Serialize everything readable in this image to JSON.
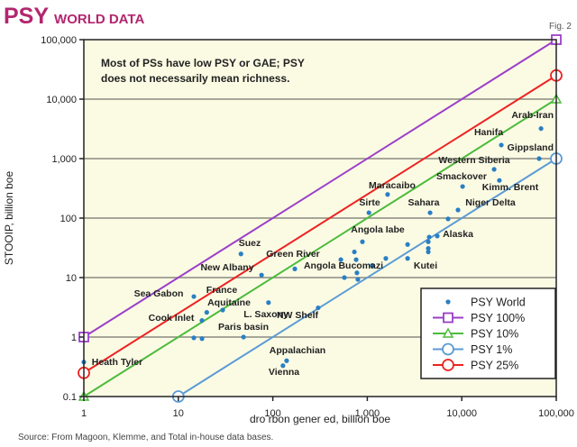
{
  "header": {
    "title_main": "PSY",
    "title_sub": "WORLD DATA",
    "figure_label": "Fig. 2"
  },
  "source": "Source: From Magoon, Klemme, and Total in-house data bases.",
  "chart_data": {
    "type": "scatter",
    "title": "",
    "annotation_box": [
      "Most of PSs have low PSY or GAE; PSY",
      "does not necessarily mean richness."
    ],
    "xlabel": "dro rbon gener ed, billion boe",
    "ylabel": "STOOIP, billion boe",
    "xscale": "log",
    "yscale": "log",
    "xlim": [
      1,
      100000
    ],
    "ylim": [
      0.1,
      100000
    ],
    "xticks": [
      1,
      10,
      100,
      1000,
      10000,
      100000
    ],
    "xtick_labels": [
      "1",
      "10",
      "100",
      "1,000",
      "10,000",
      "100,000"
    ],
    "yticks": [
      0.1,
      1,
      10,
      100,
      1000,
      10000,
      100000
    ],
    "ytick_labels": [
      "0.1",
      "1",
      "10",
      "100",
      "1,000",
      "10,000",
      "100,000"
    ],
    "grid": "horizontal",
    "legend_position": "bottom-right",
    "background_color": "#fbfbe4",
    "series": [
      {
        "name": "PSY World",
        "kind": "points",
        "color": "#2a7fc4",
        "points": [
          [
            69000,
            3200
          ],
          [
            26200,
            1690
          ],
          [
            65900,
            1000
          ],
          [
            22000,
            660
          ],
          [
            25000,
            430
          ],
          [
            10200,
            340
          ],
          [
            1640,
            250
          ],
          [
            1040,
            123
          ],
          [
            4620,
            123
          ],
          [
            9120,
            137
          ],
          [
            7160,
            97
          ],
          [
            888,
            40
          ],
          [
            5500,
            50
          ],
          [
            4520,
            48
          ],
          [
            4420,
            40
          ],
          [
            4420,
            31
          ],
          [
            4420,
            27
          ],
          [
            2670,
            36
          ],
          [
            2670,
            21
          ],
          [
            1570,
            21
          ],
          [
            1130,
            16
          ],
          [
            730,
            27
          ],
          [
            762,
            20
          ],
          [
            525,
            20
          ],
          [
            572,
            10
          ],
          [
            777,
            12
          ],
          [
            795,
            9.3
          ],
          [
            171,
            14
          ],
          [
            76,
            11
          ],
          [
            46,
            25
          ],
          [
            14.6,
            4.8
          ],
          [
            20,
            2.6
          ],
          [
            29.5,
            2.85
          ],
          [
            17.8,
            1.9
          ],
          [
            14.6,
            0.97
          ],
          [
            17.8,
            0.94
          ],
          [
            49,
            1.0
          ],
          [
            90,
            3.8
          ],
          [
            302,
            3.1
          ],
          [
            140,
            0.4
          ],
          [
            128,
            0.33
          ],
          [
            1,
            0.38
          ]
        ]
      },
      {
        "name": "PSY 100%",
        "kind": "line",
        "ratio": 1,
        "color": "#9b3fc8",
        "marker": "square"
      },
      {
        "name": "PSY 10%",
        "kind": "line",
        "ratio": 0.1,
        "color": "#4cbb3c",
        "marker": "triangle"
      },
      {
        "name": "PSY 1%",
        "kind": "line",
        "ratio": 0.01,
        "color": "#5b9bd5",
        "marker": "circle"
      },
      {
        "name": "PSY 25%",
        "kind": "line",
        "ratio": 0.25,
        "color": "#ee2222",
        "marker": "circle"
      }
    ],
    "point_labels": [
      "Arab-Iran",
      "Hanifa",
      "Gippsland",
      "Western Siberia",
      "Smackover",
      "Kimm. Brent",
      "Maracaibo",
      "Sirte",
      "Sahara",
      "Niger Delta",
      "Angola Iabe",
      "Alaska",
      "Kutei",
      "Angola Bucomazi",
      "Green River",
      "New Albany",
      "Suez",
      "Sea Gabon",
      "France",
      "Aquitaine",
      "L. Saxony",
      "Cook Inlet",
      "NW Shelf",
      "Paris basin",
      "Appalachian",
      "Vienna",
      "Heath Tyler"
    ]
  }
}
